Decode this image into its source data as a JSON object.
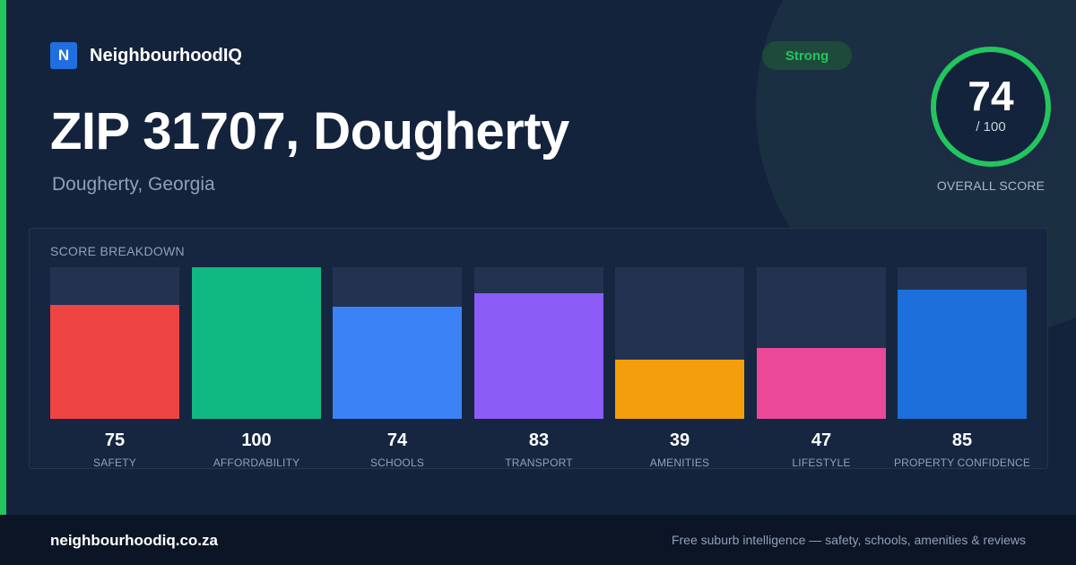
{
  "brand": {
    "logo_letter": "N",
    "name": "NeighbourhoodIQ"
  },
  "header": {
    "title": "ZIP 31707, Dougherty",
    "subtitle": "Dougherty, Georgia",
    "badge": "Strong"
  },
  "overall": {
    "score": "74",
    "max_label": "/ 100",
    "score_fraction": 0.74,
    "caption": "OVERALL SCORE"
  },
  "breakdown": {
    "title": "SCORE BREAKDOWN",
    "items": [
      {
        "label": "SAFETY",
        "value": "75",
        "color": "#ef4444"
      },
      {
        "label": "AFFORDABILITY",
        "value": "100",
        "color": "#10b981"
      },
      {
        "label": "SCHOOLS",
        "value": "74",
        "color": "#3b82f6"
      },
      {
        "label": "TRANSPORT",
        "value": "83",
        "color": "#8b5cf6"
      },
      {
        "label": "AMENITIES",
        "value": "39",
        "color": "#f59e0b"
      },
      {
        "label": "LIFESTYLE",
        "value": "47",
        "color": "#ec4899"
      },
      {
        "label": "PROPERTY CONFIDENCE",
        "value": "85",
        "color": "#1d6fdc"
      }
    ]
  },
  "chart_data": {
    "type": "bar",
    "categories": [
      "SAFETY",
      "AFFORDABILITY",
      "SCHOOLS",
      "TRANSPORT",
      "AMENITIES",
      "LIFESTYLE",
      "PROPERTY CONFIDENCE"
    ],
    "values": [
      75,
      100,
      74,
      83,
      39,
      47,
      85
    ],
    "title": "SCORE BREAKDOWN",
    "ylim": [
      0,
      100
    ]
  },
  "colors": {
    "accent": "#22c55e",
    "brand": "#1f6fe0",
    "background": "#14233c"
  },
  "footer": {
    "domain": "neighbourhoodiq.co.za",
    "tagline": "Free suburb intelligence — safety, schools, amenities & reviews"
  }
}
